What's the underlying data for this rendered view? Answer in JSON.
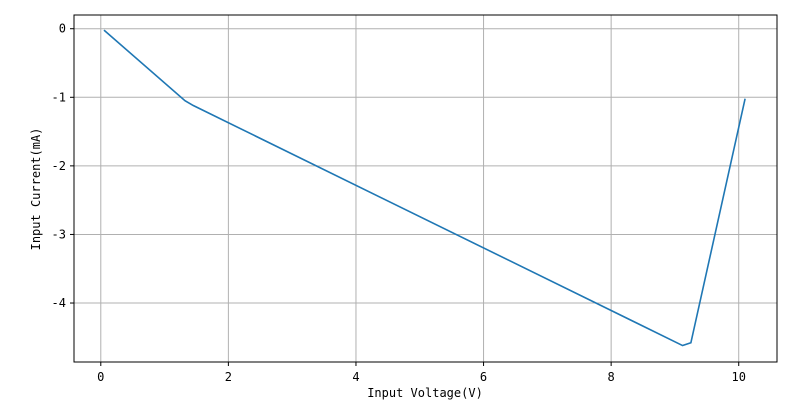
{
  "chart_data": {
    "type": "line",
    "x_label": "Input Voltage(V)",
    "y_label": "Input Current(mA)",
    "x": [
      0.05,
      1.32,
      1.45,
      9.12,
      9.25,
      10.1
    ],
    "series": [
      {
        "color": "#1f77b4",
        "values": [
          -0.02,
          -1.05,
          -1.12,
          -4.62,
          -4.58,
          -1.02
        ]
      }
    ],
    "xlim": [
      -0.42,
      10.6
    ],
    "ylim": [
      -4.86,
      0.2
    ],
    "xticks": [
      0,
      2,
      4,
      6,
      8,
      10
    ],
    "yticks": [
      -4,
      -3,
      -2,
      -1,
      0
    ],
    "grid": true
  }
}
